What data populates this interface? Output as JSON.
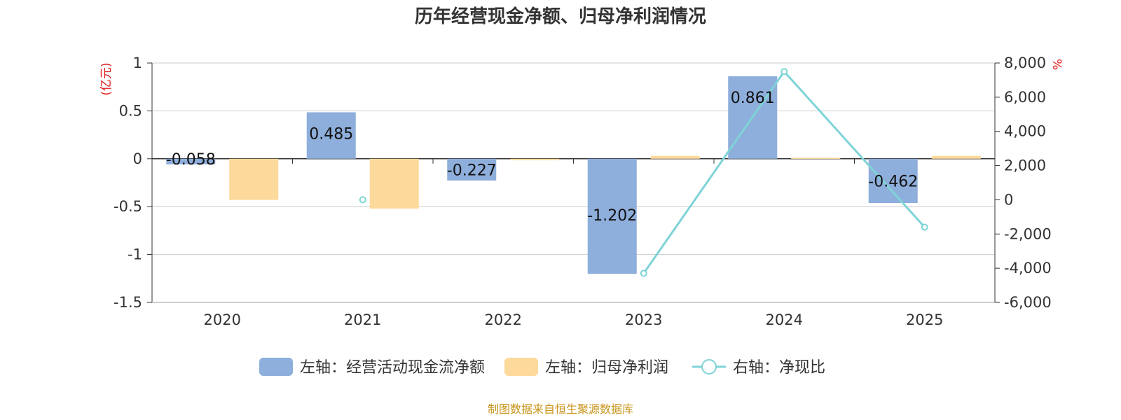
{
  "title": "历年经营现金净额、归母净利润情况",
  "source": "制图数据来自恒生聚源数据库",
  "chart_data": {
    "type": "bar",
    "categories": [
      "2020",
      "2021",
      "2022",
      "2023",
      "2024",
      "2025"
    ],
    "left_axis": {
      "unit": "(亿元)",
      "ylim": [
        -1.5,
        1
      ],
      "ticks": [
        "1",
        "0.5",
        "0",
        "-0.5",
        "-1",
        "-1.5"
      ]
    },
    "right_axis": {
      "unit": "%",
      "ylim": [
        -6000,
        8000
      ],
      "ticks": [
        "8,000",
        "6,000",
        "4,000",
        "2,000",
        "0",
        "-2,000",
        "-4,000",
        "-6,000"
      ]
    },
    "grid": true,
    "legend_position": "bottom",
    "series": [
      {
        "name": "左轴：经营活动现金流净额",
        "type": "bar",
        "axis": "left",
        "color": "#8eaedb",
        "values": [
          -0.058,
          0.485,
          -0.227,
          -1.202,
          0.861,
          -0.462
        ],
        "labels": [
          "-0.058",
          "0.485",
          "-0.227",
          "-1.202",
          "0.861",
          "-0.462"
        ]
      },
      {
        "name": "左轴：归母净利润",
        "type": "bar",
        "axis": "left",
        "color": "#fdd99b",
        "values": [
          -0.43,
          -0.52,
          -0.015,
          0.03,
          0.01,
          0.03
        ]
      },
      {
        "name": "右轴：净现比",
        "type": "line",
        "axis": "right",
        "color": "#7fd3d7",
        "values": [
          null,
          0,
          null,
          -4300,
          7500,
          -1600
        ]
      }
    ]
  }
}
